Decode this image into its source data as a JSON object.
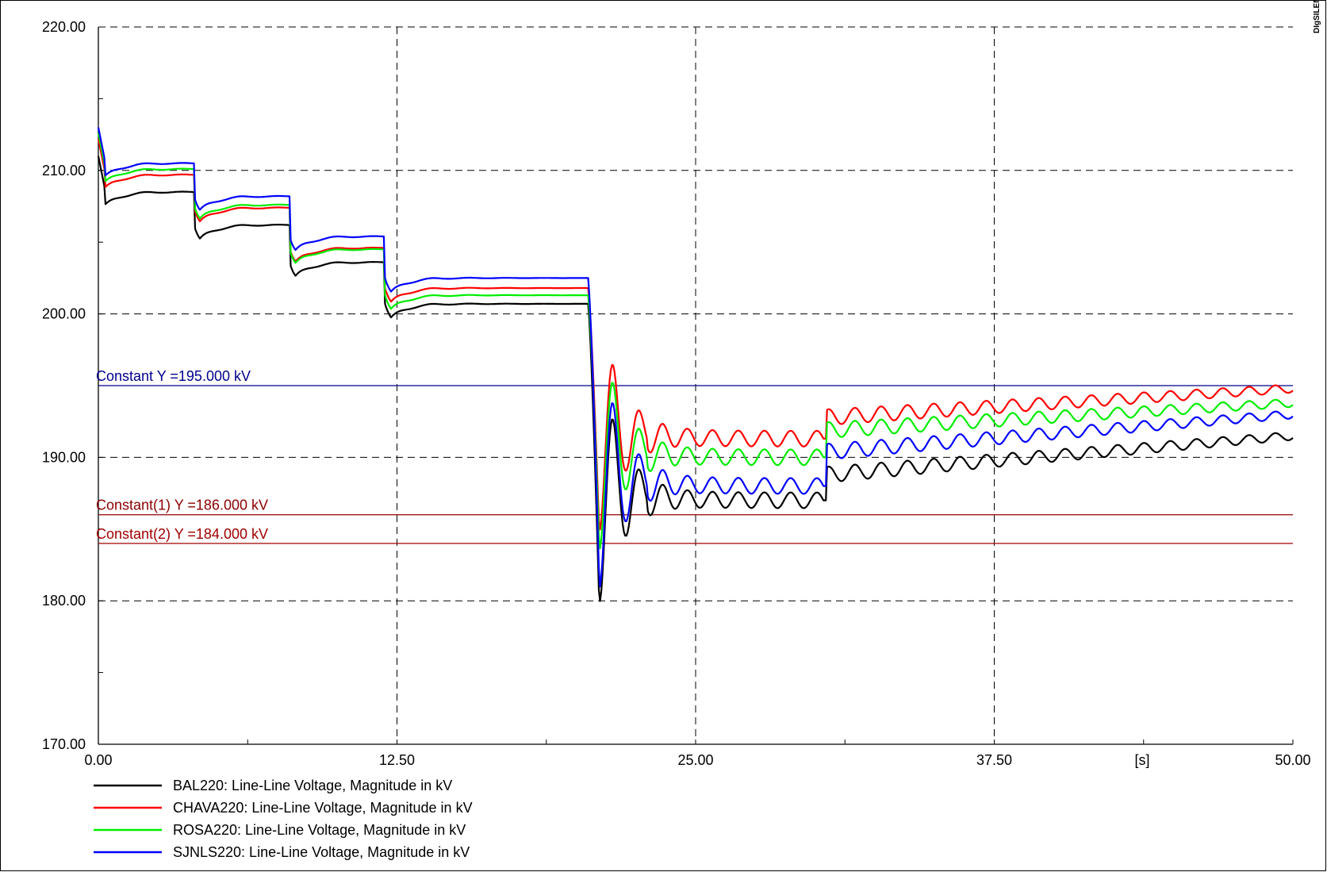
{
  "brand": "DIgSILENT",
  "chart_data": {
    "type": "line",
    "xlabel": "[s]",
    "xlim": [
      0,
      50
    ],
    "ylim": [
      170,
      220
    ],
    "x_ticks": [
      "0.00",
      "12.50",
      "25.00",
      "37.50",
      "50.00"
    ],
    "y_ticks": [
      "170.00",
      "180.00",
      "190.00",
      "200.00",
      "210.00",
      "220.00"
    ],
    "grid": true,
    "legend_position": "bottom-left",
    "constants": [
      {
        "label": "Constant Y =195.000 kV",
        "value": 195.0,
        "color": "#00008b"
      },
      {
        "label": "Constant(1) Y =186.000 kV",
        "value": 186.0,
        "color": "#8b0000"
      },
      {
        "label": "Constant(2) Y =184.000 kV",
        "value": 184.0,
        "color": "#a00000"
      }
    ],
    "series": [
      {
        "name": "BAL220: Line-Line Voltage, Magnitude in kV",
        "color": "#000000",
        "levels": [
          208.5,
          206.2,
          203.6,
          200.7
        ],
        "dip": 177.8,
        "peaks": [
          193.9,
          193.8,
          191.2
        ],
        "troughs": [
          186.6,
          186.9
        ],
        "plateau": 187.0,
        "after_step": 188.8,
        "final": 191.5
      },
      {
        "name": "CHAVA220: Line-Line Voltage, Magnitude in kV",
        "color": "#ff0000",
        "levels": [
          209.7,
          207.4,
          204.6,
          201.8
        ],
        "dip": 183.2,
        "peaks": [
          197.8,
          196.8,
          195.3
        ],
        "troughs": [
          190.5,
          191.0
        ],
        "plateau": 191.3,
        "after_step": 192.8,
        "final": 194.8
      },
      {
        "name": "ROSA220: Line-Line Voltage, Magnitude in kV",
        "color": "#00ee00",
        "levels": [
          210.1,
          207.6,
          204.5,
          201.3
        ],
        "dip": 182.0,
        "peaks": [
          196.7,
          196.0,
          194.2
        ],
        "troughs": [
          189.8,
          190.0
        ],
        "plateau": 190.0,
        "after_step": 191.9,
        "final": 193.8
      },
      {
        "name": "SJNLS220: Line-Line Voltage, Magnitude in kV",
        "color": "#0000ff",
        "levels": [
          210.5,
          208.2,
          205.4,
          202.5
        ],
        "dip": 179.3,
        "peaks": [
          195.6,
          195.4,
          193.0
        ],
        "troughs": [
          188.2,
          188.6
        ],
        "plateau": 188.0,
        "after_step": 190.4,
        "final": 193.0
      }
    ]
  }
}
